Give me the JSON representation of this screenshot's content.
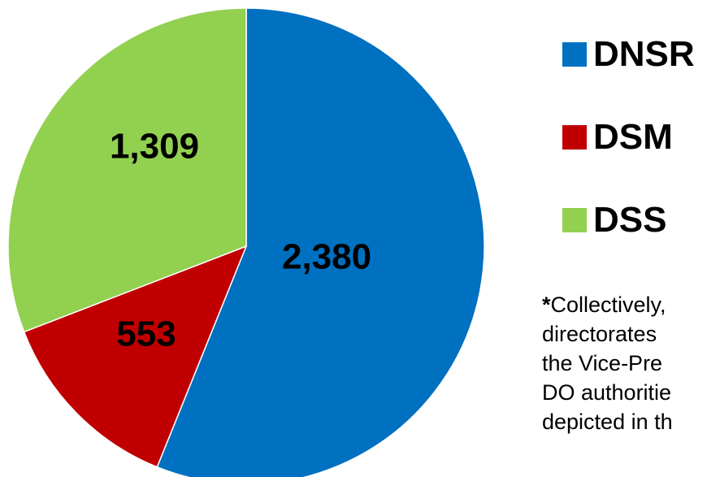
{
  "chart_data": {
    "type": "pie",
    "categories": [
      "DNSR",
      "DSM",
      "DSS"
    ],
    "values": [
      2380,
      553,
      1309
    ],
    "value_labels": [
      "2,380",
      "553",
      "1,309"
    ],
    "colors": [
      "#0070C0",
      "#C00000",
      "#92D050"
    ],
    "start_angle_deg": 0,
    "direction": "clockwise",
    "legend": {
      "placement": "right",
      "entries": [
        "DNSR",
        "DSM",
        "DSS"
      ]
    }
  },
  "footnote": {
    "star": "*",
    "lines": [
      "Collectively,",
      "directorates",
      "the Vice-Pre",
      "DO authoritie",
      "depicted in th"
    ]
  }
}
